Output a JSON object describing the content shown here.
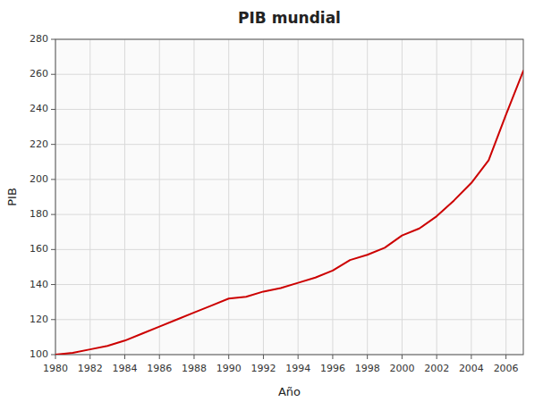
{
  "chart_data": {
    "type": "line",
    "title": "PIB mundial",
    "xlabel": "Año",
    "ylabel": "PIB",
    "x": [
      1980,
      1981,
      1982,
      1983,
      1984,
      1985,
      1986,
      1987,
      1988,
      1989,
      1990,
      1991,
      1992,
      1993,
      1994,
      1995,
      1996,
      1997,
      1998,
      1999,
      2000,
      2001,
      2002,
      2003,
      2004,
      2005,
      2006,
      2007
    ],
    "values": [
      100,
      101,
      103,
      105,
      108,
      112,
      116,
      120,
      124,
      128,
      132,
      133,
      136,
      138,
      141,
      144,
      148,
      154,
      157,
      161,
      168,
      172,
      179,
      188,
      198,
      211,
      237,
      262
    ],
    "color": "#cc0000",
    "xlim": [
      1980,
      2007
    ],
    "ylim": [
      100,
      280
    ],
    "xticks": [
      1980,
      1982,
      1984,
      1986,
      1988,
      1990,
      1992,
      1994,
      1996,
      1998,
      2000,
      2002,
      2004,
      2006
    ],
    "yticks": [
      100,
      120,
      140,
      160,
      180,
      200,
      220,
      240,
      260,
      280
    ],
    "grid": true
  }
}
